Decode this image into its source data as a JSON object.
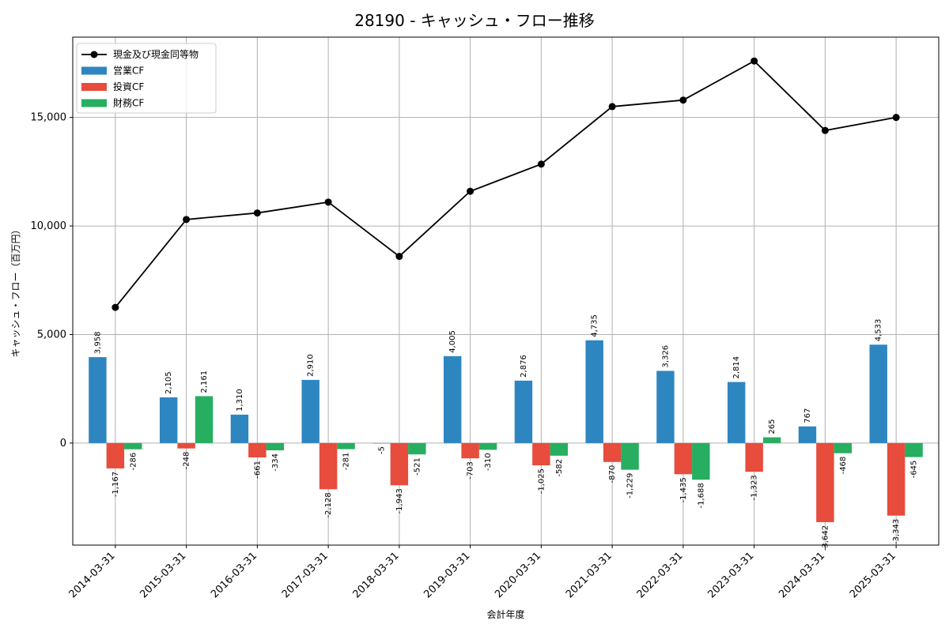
{
  "chart_data": {
    "type": "bar",
    "title": "28190 - キャッシュ・フロー推移",
    "xlabel": "会計年度",
    "ylabel": "キャッシュ・フロー（百万円）",
    "categories": [
      "2014-03-31",
      "2015-03-31",
      "2016-03-31",
      "2017-03-31",
      "2018-03-31",
      "2019-03-31",
      "2020-03-31",
      "2021-03-31",
      "2022-03-31",
      "2023-03-31",
      "2024-03-31",
      "2025-03-31"
    ],
    "ylim": [
      -4700,
      18700
    ],
    "yticks": [
      0,
      5000,
      10000,
      15000
    ],
    "ytick_labels": [
      "0",
      "5,000",
      "10,000",
      "15,000"
    ],
    "grid": true,
    "legend_position": "top-left",
    "series": [
      {
        "name": "営業CF",
        "kind": "bar",
        "color": "#2e86c1",
        "values": [
          3958,
          2105,
          1310,
          2910,
          -5,
          4005,
          2876,
          4735,
          3326,
          2814,
          767,
          4533
        ],
        "labels": [
          "3,958",
          "2,105",
          "1,310",
          "2,910",
          "-5",
          "4,005",
          "2,876",
          "4,735",
          "3,326",
          "2,814",
          "767",
          "4,533"
        ]
      },
      {
        "name": "投資CF",
        "kind": "bar",
        "color": "#e74c3c",
        "values": [
          -1167,
          -248,
          -661,
          -2128,
          -1943,
          -703,
          -1025,
          -870,
          -1435,
          -1323,
          -3642,
          -3343
        ],
        "labels": [
          "-1,167",
          "-248",
          "-661",
          "-2,128",
          "-1,943",
          "-703",
          "-1,025",
          "-870",
          "-1,435",
          "-1,323",
          "-3,642",
          "-3,343"
        ]
      },
      {
        "name": "財務CF",
        "kind": "bar",
        "color": "#27ae60",
        "values": [
          -286,
          2161,
          -334,
          -281,
          -521,
          -310,
          -582,
          -1229,
          -1688,
          265,
          -468,
          -645
        ],
        "labels": [
          "-286",
          "2,161",
          "-334",
          "-281",
          "-521",
          "-310",
          "-582",
          "-1,229",
          "-1,688",
          "265",
          "-468",
          "-645"
        ]
      }
    ],
    "line": {
      "name": "現金及び現金同等物",
      "kind": "line",
      "color": "#000000",
      "values": [
        6250,
        10300,
        10600,
        11100,
        8600,
        11600,
        12850,
        15500,
        15800,
        17600,
        14400,
        15000
      ]
    }
  }
}
